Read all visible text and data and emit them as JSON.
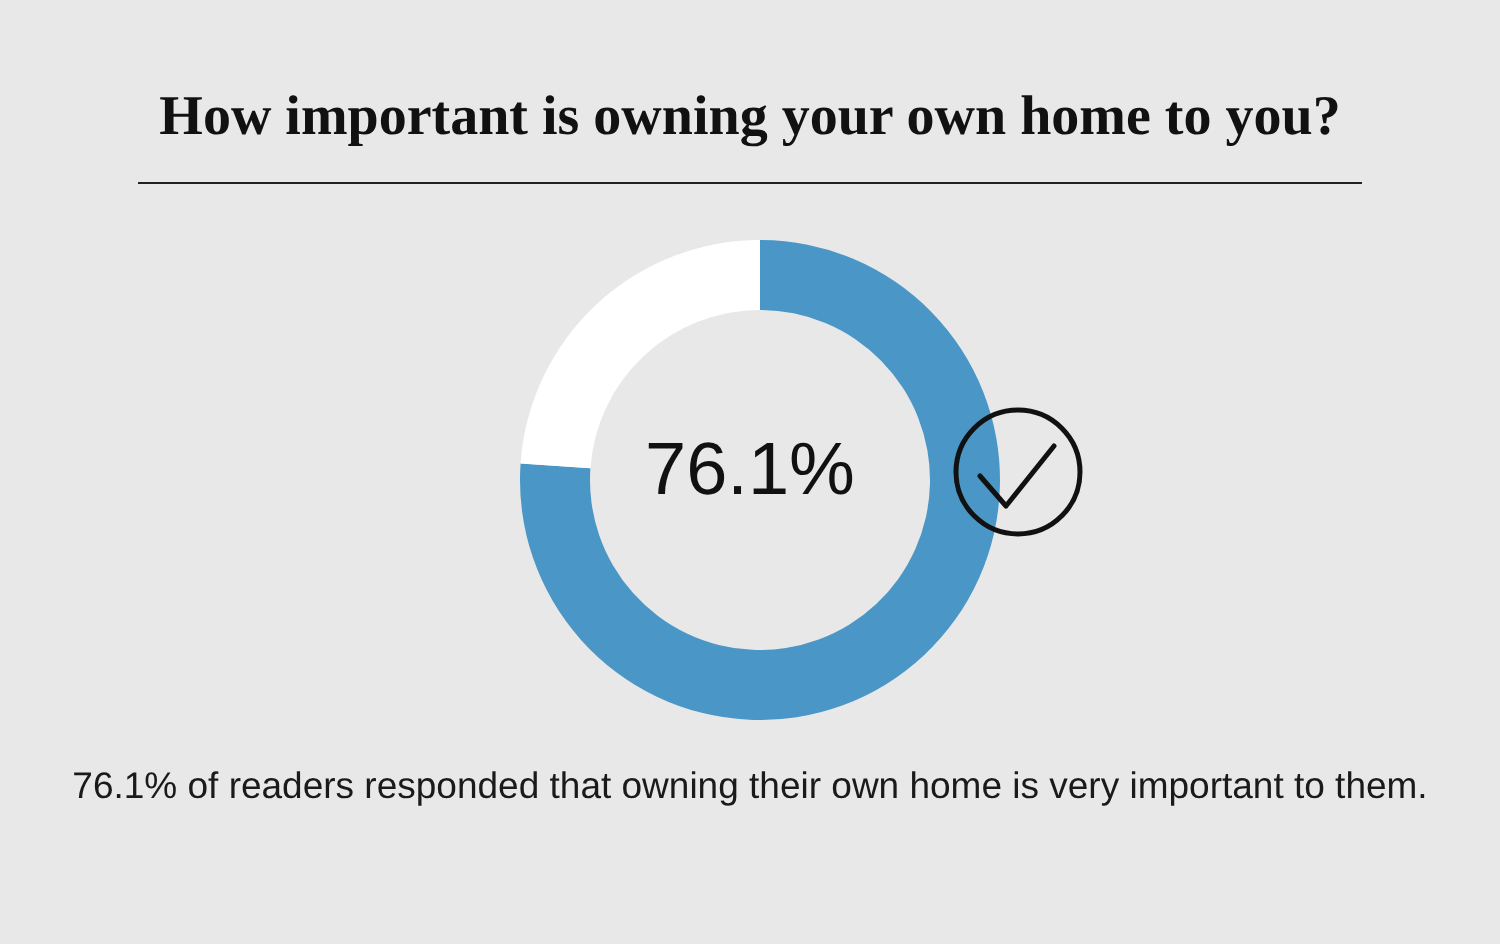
{
  "chart_data": {
    "type": "donut",
    "title": "How important is owning your own home to you?",
    "categories": [
      null,
      null
    ],
    "values": [
      76.1,
      23.9
    ],
    "colors": [
      "#4a97c7",
      "#ffffff"
    ],
    "annotations": [
      "76.1%",
      "76.1% of readers responded that owning their own home is very important to them."
    ]
  }
}
